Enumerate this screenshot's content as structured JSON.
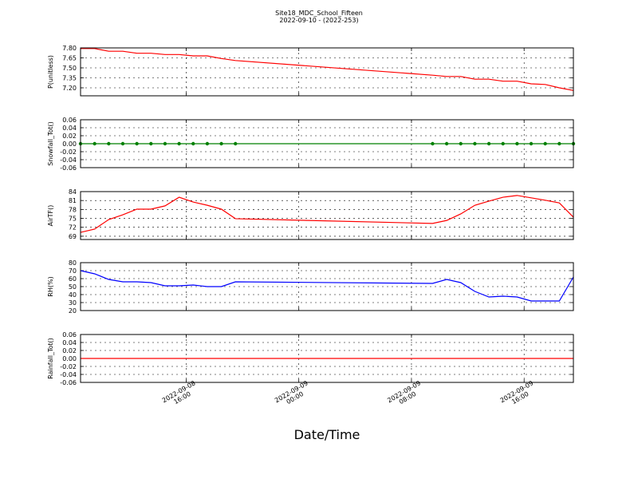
{
  "chart_data": [
    {
      "type": "line",
      "title": "Site18_MDC_School_Fifteen",
      "subtitle": "2022-09-10 - (2022-253)",
      "ylabel": "P(unitless)",
      "ylim": [
        7.08,
        7.8
      ],
      "yticks": [
        {
          "value": 7.2,
          "label": "7.20"
        },
        7.35,
        {
          "value": 7.5,
          "label": "7.50"
        },
        7.65,
        {
          "value": 7.8,
          "label": "7.80"
        }
      ],
      "grid": true,
      "series": [
        {
          "color": "#ff0000",
          "values": [
            7.79,
            7.79,
            7.75,
            7.75,
            7.72,
            7.72,
            7.7,
            7.7,
            7.68,
            7.68,
            7.64,
            7.61,
            7.39,
            7.37,
            7.37,
            7.33,
            7.33,
            7.3,
            7.3,
            7.26,
            7.25,
            7.2,
            7.16
          ]
        }
      ]
    },
    {
      "type": "line",
      "ylabel": "Snowfall_Tot()",
      "ylim": [
        -0.06,
        0.06
      ],
      "yticks": [
        -0.06,
        -0.04,
        -0.02,
        {
          "value": 0,
          "label": "0.00"
        },
        0.02,
        0.04,
        0.06
      ],
      "grid": true,
      "series": [
        {
          "color": "#008000",
          "marker": "o",
          "values": [
            0,
            0,
            0,
            0,
            0,
            0,
            0,
            0,
            0,
            0,
            0,
            0,
            0,
            0,
            0,
            0,
            0,
            0,
            0,
            0,
            0,
            0,
            0
          ]
        }
      ]
    },
    {
      "type": "line",
      "ylabel": "AirTF()",
      "ylim": [
        67.9,
        84
      ],
      "yticks": [
        69,
        72,
        75,
        78,
        81,
        84
      ],
      "grid": true,
      "series": [
        {
          "color": "#ff0000",
          "values": [
            70.3,
            71.4,
            74.6,
            76.2,
            78.1,
            78.1,
            79.2,
            82.1,
            80.5,
            79.4,
            78.1,
            74.9,
            73.3,
            74.3,
            76.5,
            79.4,
            80.8,
            82.1,
            82.7,
            81.9,
            81.1,
            80.2,
            75.4
          ]
        }
      ]
    },
    {
      "type": "line",
      "ylabel": "RH(%)",
      "ylim": [
        20,
        80
      ],
      "yticks": [
        20,
        30,
        40,
        50,
        60,
        70,
        80
      ],
      "grid": true,
      "series": [
        {
          "color": "#0000ff",
          "values": [
            70,
            66,
            59,
            56,
            56,
            55,
            51,
            51,
            52,
            50,
            50,
            56,
            54,
            59,
            55,
            44,
            37,
            38,
            37,
            32,
            32,
            32,
            62
          ]
        }
      ]
    },
    {
      "type": "line",
      "ylabel": "Rainfall_Tot()",
      "xlabel": "Date/Time",
      "ylim": [
        -0.06,
        0.06
      ],
      "yticks": [
        -0.06,
        -0.04,
        -0.02,
        {
          "value": 0,
          "label": "0.00"
        },
        0.02,
        0.04,
        0.06
      ],
      "grid": true,
      "xlim": [
        "2022-09-08 08:30",
        "2022-09-09 19:30"
      ],
      "xticks": [
        {
          "value": "2022-09-08 16:00",
          "label": [
            "2022-09-08",
            "16:00"
          ]
        },
        {
          "value": "2022-09-09 00:00",
          "label": [
            "2022-09-09",
            "00:00"
          ]
        },
        {
          "value": "2022-09-09 08:00",
          "label": [
            "2022-09-09",
            "08:00"
          ]
        },
        {
          "value": "2022-09-09 16:00",
          "label": [
            "2022-09-09",
            "16:00"
          ]
        }
      ],
      "x": [
        "2022-09-08 08:30",
        "2022-09-08 09:30",
        "2022-09-08 10:30",
        "2022-09-08 11:30",
        "2022-09-08 12:30",
        "2022-09-08 13:30",
        "2022-09-08 14:30",
        "2022-09-08 15:30",
        "2022-09-08 16:30",
        "2022-09-08 17:30",
        "2022-09-08 18:30",
        "2022-09-08 19:30",
        "2022-09-09 09:30",
        "2022-09-09 10:30",
        "2022-09-09 11:30",
        "2022-09-09 12:30",
        "2022-09-09 13:30",
        "2022-09-09 14:30",
        "2022-09-09 15:30",
        "2022-09-09 16:30",
        "2022-09-09 17:30",
        "2022-09-09 18:30",
        "2022-09-09 19:30"
      ],
      "series": [
        {
          "color": "#ff0000",
          "values": [
            0,
            0,
            0,
            0,
            0,
            0,
            0,
            0,
            0,
            0,
            0,
            0,
            0,
            0,
            0,
            0,
            0,
            0,
            0,
            0,
            0,
            0,
            0
          ]
        }
      ]
    }
  ]
}
